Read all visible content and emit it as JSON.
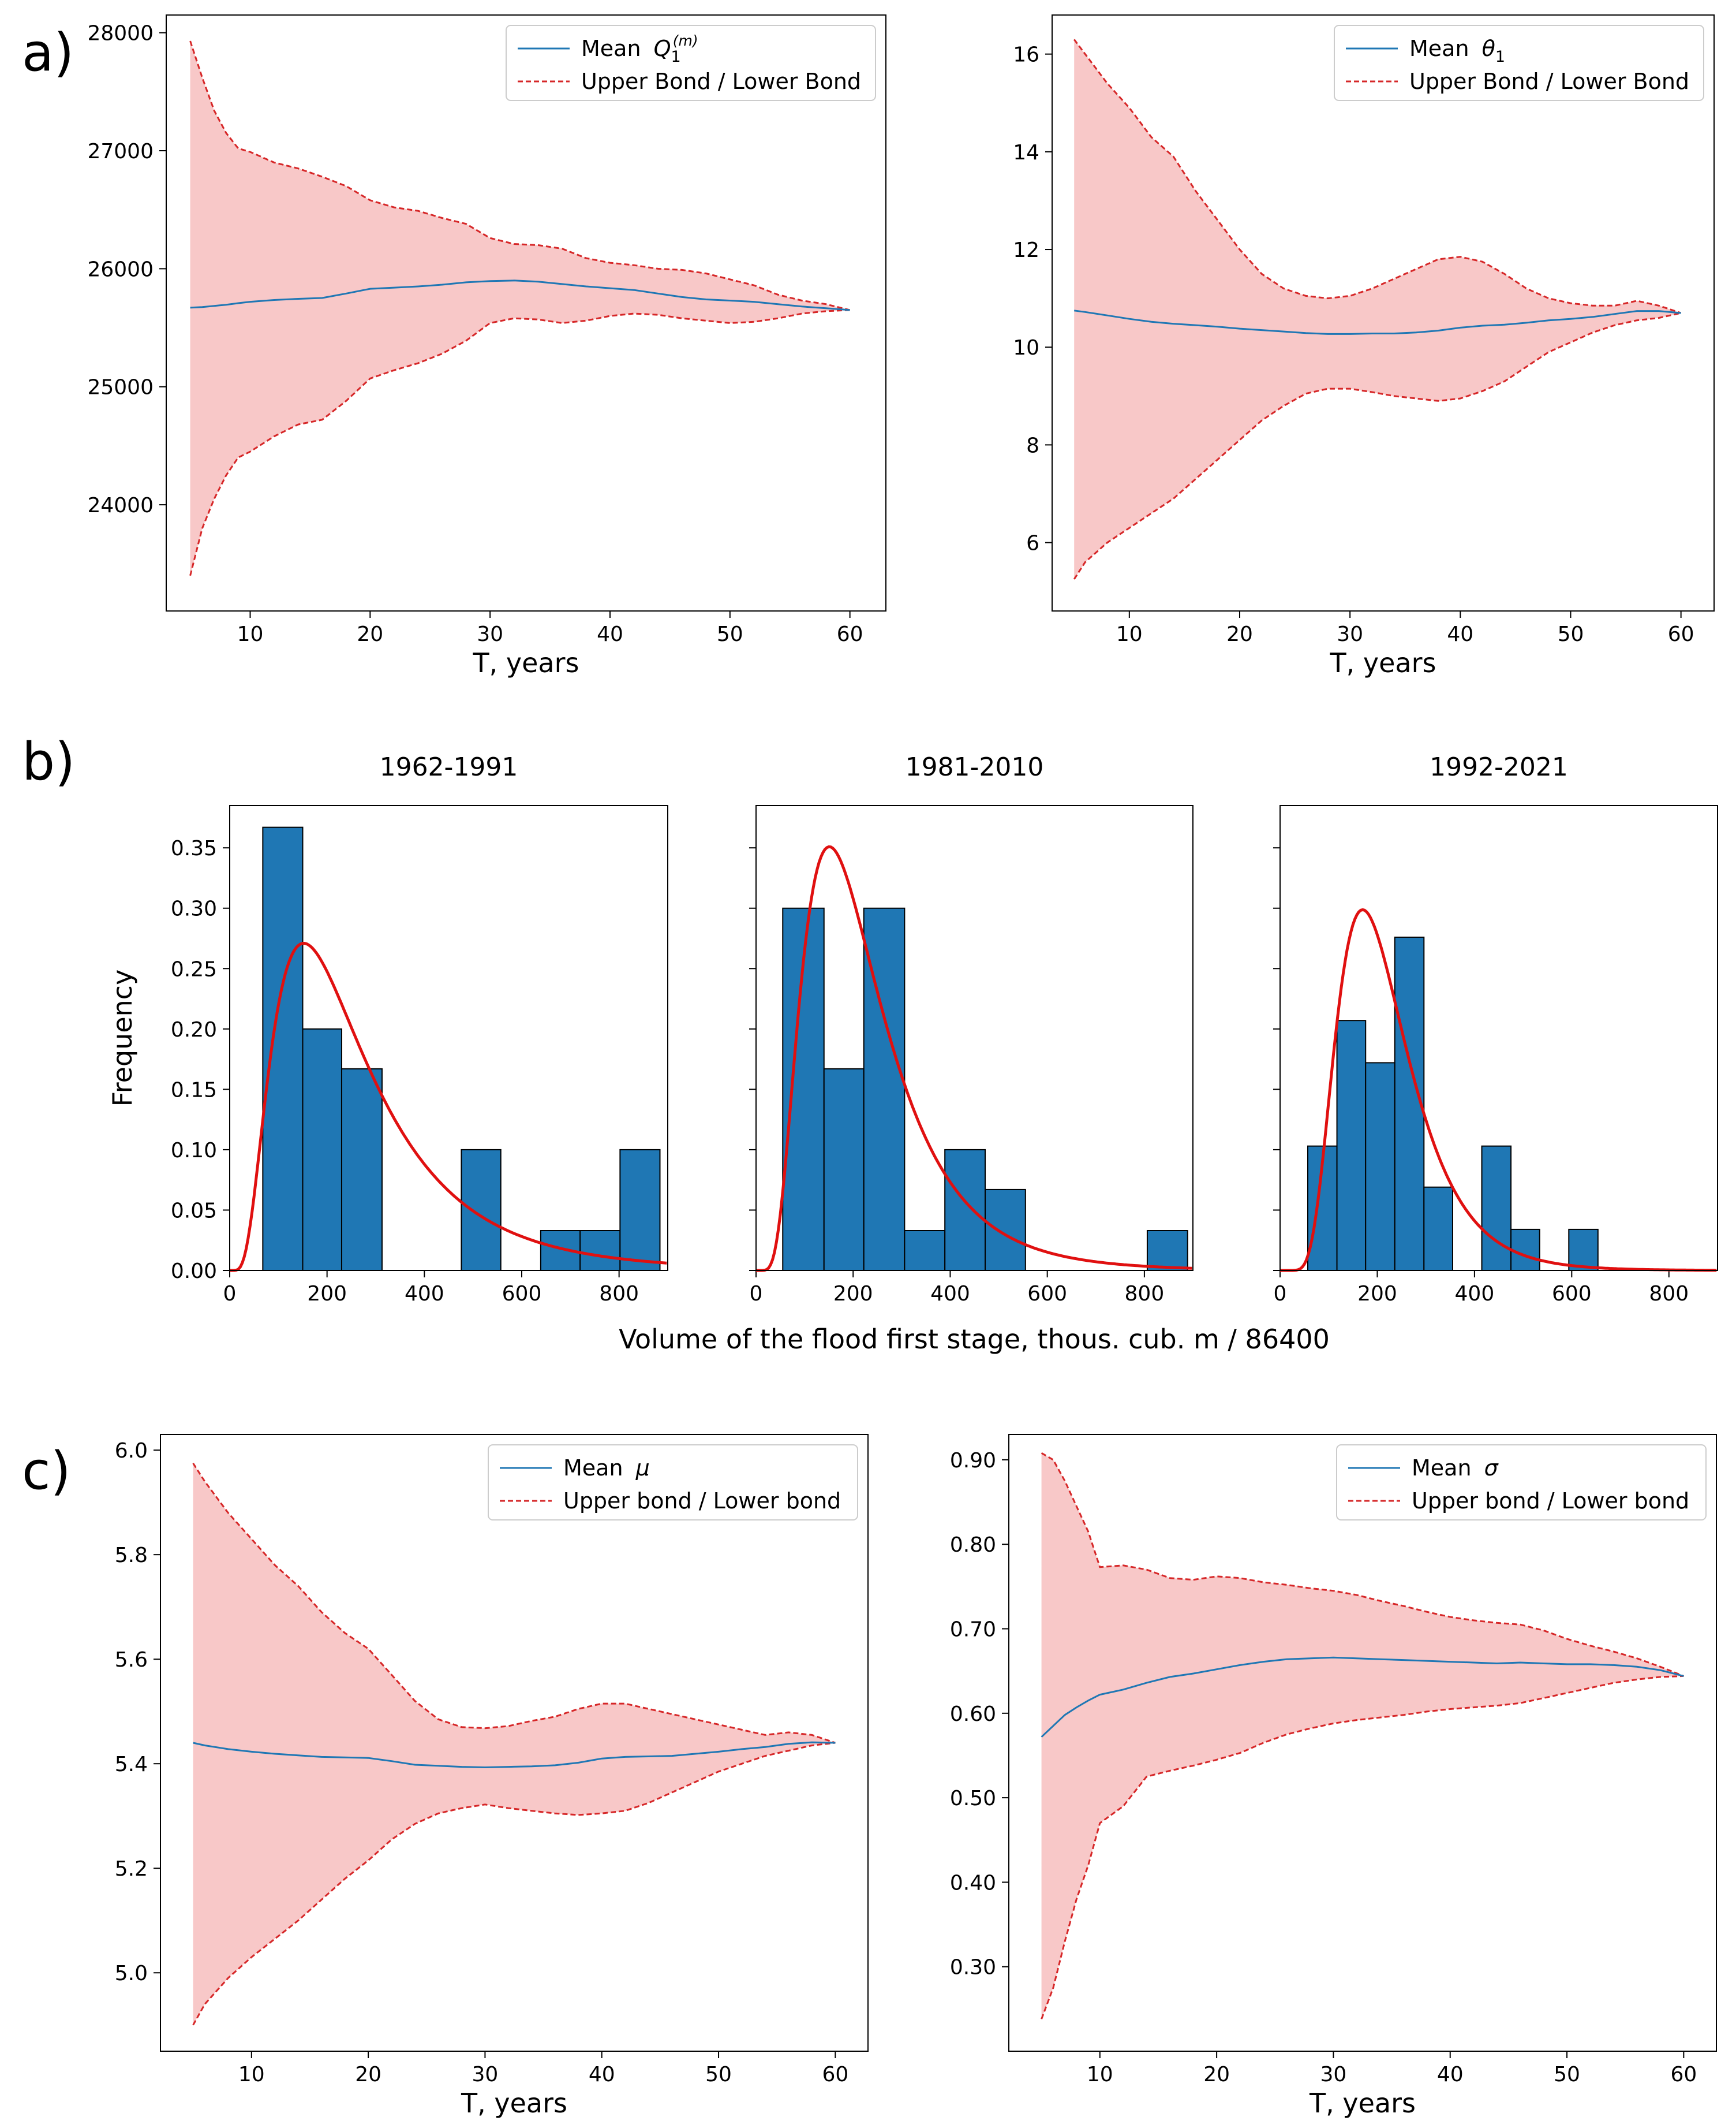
{
  "figure": {
    "panel_labels": [
      "a)",
      "b)",
      "c)"
    ]
  },
  "chart_data": [
    {
      "id": "a1",
      "type": "line",
      "panel": "a)",
      "xlabel": "T, years",
      "ylabel": "",
      "xlim": [
        3,
        63
      ],
      "ylim": [
        23100,
        28150
      ],
      "xticks": [
        10,
        20,
        30,
        40,
        50,
        60
      ],
      "yticks": [
        24000,
        25000,
        26000,
        27000,
        28000
      ],
      "legend": {
        "position": "top-right",
        "mean_label_prefix": "Mean ",
        "mean_label_math": "Q",
        "mean_label_sub": "1",
        "mean_label_sup": "(m)",
        "band_label": "Upper Bond / Lower Bond"
      },
      "colors": {
        "mean": "#1f77b4",
        "bound": "#d62728",
        "fill": "#f8c8c8"
      },
      "x": [
        5,
        6,
        7,
        8,
        9,
        10,
        12,
        14,
        16,
        18,
        20,
        22,
        24,
        26,
        28,
        30,
        32,
        34,
        36,
        38,
        40,
        42,
        44,
        46,
        48,
        50,
        52,
        54,
        56,
        58,
        60
      ],
      "mean": [
        25670,
        25675,
        25685,
        25695,
        25708,
        25720,
        25735,
        25745,
        25752,
        25790,
        25830,
        25840,
        25850,
        25865,
        25885,
        25895,
        25900,
        25890,
        25870,
        25850,
        25835,
        25820,
        25790,
        25760,
        25740,
        25730,
        25720,
        25700,
        25680,
        25665,
        25650
      ],
      "upper": [
        27930,
        27620,
        27340,
        27150,
        27020,
        26990,
        26900,
        26850,
        26780,
        26700,
        26580,
        26520,
        26490,
        26430,
        26380,
        26260,
        26210,
        26200,
        26170,
        26090,
        26050,
        26030,
        26000,
        25990,
        25960,
        25910,
        25860,
        25780,
        25730,
        25700,
        25650
      ],
      "lower": [
        23400,
        23800,
        24050,
        24250,
        24400,
        24450,
        24580,
        24680,
        24720,
        24880,
        25070,
        25140,
        25200,
        25280,
        25390,
        25540,
        25580,
        25570,
        25540,
        25560,
        25600,
        25620,
        25610,
        25580,
        25560,
        25540,
        25550,
        25580,
        25620,
        25640,
        25650
      ]
    },
    {
      "id": "a2",
      "type": "line",
      "panel": "a)",
      "xlabel": "T, years",
      "ylabel": "",
      "xlim": [
        3,
        63
      ],
      "ylim": [
        4.6,
        16.8
      ],
      "xticks": [
        10,
        20,
        30,
        40,
        50,
        60
      ],
      "yticks": [
        6,
        8,
        10,
        12,
        14,
        16
      ],
      "legend": {
        "position": "top-right",
        "mean_label_prefix": "Mean ",
        "mean_label_math": "θ",
        "mean_label_sub": "1",
        "mean_label_sup": "",
        "band_label": "Upper Bond / Lower Bond"
      },
      "colors": {
        "mean": "#1f77b4",
        "bound": "#d62728",
        "fill": "#f8c8c8"
      },
      "x": [
        5,
        6,
        8,
        10,
        12,
        14,
        16,
        18,
        20,
        22,
        24,
        26,
        28,
        30,
        32,
        34,
        36,
        38,
        40,
        42,
        44,
        46,
        48,
        50,
        52,
        54,
        56,
        58,
        60
      ],
      "mean": [
        10.75,
        10.72,
        10.65,
        10.58,
        10.52,
        10.48,
        10.45,
        10.42,
        10.38,
        10.35,
        10.32,
        10.29,
        10.27,
        10.27,
        10.28,
        10.28,
        10.3,
        10.34,
        10.4,
        10.44,
        10.46,
        10.5,
        10.55,
        10.58,
        10.62,
        10.68,
        10.74,
        10.74,
        10.7
      ],
      "upper": [
        16.3,
        16.0,
        15.4,
        14.9,
        14.3,
        13.9,
        13.2,
        12.6,
        12.0,
        11.5,
        11.2,
        11.05,
        11.0,
        11.05,
        11.2,
        11.4,
        11.6,
        11.8,
        11.85,
        11.75,
        11.5,
        11.2,
        11.0,
        10.9,
        10.85,
        10.85,
        10.95,
        10.85,
        10.7
      ],
      "lower": [
        5.25,
        5.6,
        6.0,
        6.3,
        6.6,
        6.9,
        7.3,
        7.7,
        8.1,
        8.5,
        8.8,
        9.05,
        9.15,
        9.15,
        9.08,
        9.0,
        8.95,
        8.9,
        8.95,
        9.1,
        9.3,
        9.6,
        9.9,
        10.1,
        10.3,
        10.45,
        10.55,
        10.6,
        10.7
      ]
    },
    {
      "id": "b1",
      "type": "bar",
      "panel": "b)",
      "title": "1962-1991",
      "xlabel": "",
      "ylabel": "Frequency",
      "xlim": [
        0,
        900
      ],
      "ylim": [
        0,
        0.385
      ],
      "xticks": [
        0,
        200,
        400,
        600,
        800
      ],
      "yticks": [
        0.0,
        0.05,
        0.1,
        0.15,
        0.2,
        0.25,
        0.3,
        0.35
      ],
      "colors": {
        "bar": "#1f77b4",
        "edge": "#000000",
        "curve": "#e01010"
      },
      "bins": [
        [
          68,
          150,
          0.367
        ],
        [
          150,
          230,
          0.2
        ],
        [
          230,
          313,
          0.167
        ],
        [
          313,
          476,
          0.0
        ],
        [
          476,
          557,
          0.1
        ],
        [
          557,
          639,
          0.0
        ],
        [
          639,
          720,
          0.033
        ],
        [
          720,
          802,
          0.033
        ],
        [
          802,
          884,
          0.1
        ]
      ],
      "curve_lognormal": {
        "mu": 5.44,
        "sigma": 0.645
      }
    },
    {
      "id": "b2",
      "type": "bar",
      "panel": "b)",
      "title": "1981-2010",
      "xlabel": "",
      "ylabel": "",
      "xlim": [
        0,
        900
      ],
      "ylim": [
        0,
        0.385
      ],
      "xticks": [
        0,
        200,
        400,
        600,
        800
      ],
      "yticks": [
        0.0,
        0.05,
        0.1,
        0.15,
        0.2,
        0.25,
        0.3,
        0.35
      ],
      "colors": {
        "bar": "#1f77b4",
        "edge": "#000000",
        "curve": "#e01010"
      },
      "bins": [
        [
          55,
          140,
          0.3
        ],
        [
          140,
          222,
          0.167
        ],
        [
          222,
          306,
          0.3
        ],
        [
          306,
          389,
          0.033
        ],
        [
          389,
          472,
          0.1
        ],
        [
          472,
          555,
          0.067
        ],
        [
          555,
          806,
          0.0
        ],
        [
          806,
          889,
          0.033
        ]
      ],
      "curve_lognormal": {
        "mu": 5.32,
        "sigma": 0.55
      }
    },
    {
      "id": "b3",
      "type": "bar",
      "panel": "b)",
      "title": "1992-2021",
      "xlabel": "",
      "ylabel": "",
      "xlim": [
        0,
        900
      ],
      "ylim": [
        0,
        0.385
      ],
      "xticks": [
        0,
        200,
        400,
        600,
        800
      ],
      "yticks": [
        0.0,
        0.05,
        0.1,
        0.15,
        0.2,
        0.25,
        0.3,
        0.35
      ],
      "colors": {
        "bar": "#1f77b4",
        "edge": "#000000",
        "curve": "#e01010"
      },
      "bins": [
        [
          57,
          117,
          0.103
        ],
        [
          117,
          176,
          0.207
        ],
        [
          176,
          236,
          0.172
        ],
        [
          236,
          296,
          0.276
        ],
        [
          296,
          355,
          0.069
        ],
        [
          355,
          415,
          0.0
        ],
        [
          415,
          475,
          0.103
        ],
        [
          475,
          534,
          0.034
        ],
        [
          534,
          594,
          0.0
        ],
        [
          594,
          654,
          0.034
        ]
      ],
      "curve_lognormal": {
        "mu": 5.32,
        "sigma": 0.43
      }
    },
    {
      "id": "c1",
      "type": "line",
      "panel": "c)",
      "xlabel": "T, years",
      "ylabel": "",
      "xlim": [
        2.2,
        62.8
      ],
      "ylim": [
        4.85,
        6.03
      ],
      "xticks": [
        10,
        20,
        30,
        40,
        50,
        60
      ],
      "yticks": [
        5.0,
        5.2,
        5.4,
        5.6,
        5.8,
        6.0
      ],
      "legend": {
        "position": "top-right",
        "mean_label_prefix": "Mean ",
        "mean_label_math": "μ",
        "mean_label_sub": "",
        "mean_label_sup": "",
        "band_label": "Upper bond / Lower bond"
      },
      "colors": {
        "mean": "#1f77b4",
        "bound": "#d62728",
        "fill": "#f8c8c8"
      },
      "x": [
        5,
        6,
        8,
        10,
        12,
        14,
        16,
        18,
        20,
        22,
        24,
        26,
        28,
        30,
        32,
        34,
        36,
        38,
        40,
        42,
        44,
        46,
        48,
        50,
        52,
        54,
        56,
        58,
        60
      ],
      "mean": [
        5.44,
        5.435,
        5.428,
        5.423,
        5.419,
        5.416,
        5.413,
        5.412,
        5.411,
        5.405,
        5.398,
        5.396,
        5.394,
        5.393,
        5.394,
        5.395,
        5.397,
        5.402,
        5.41,
        5.413,
        5.414,
        5.415,
        5.419,
        5.423,
        5.428,
        5.432,
        5.438,
        5.441,
        5.44
      ],
      "upper": [
        5.975,
        5.94,
        5.88,
        5.83,
        5.78,
        5.74,
        5.69,
        5.65,
        5.62,
        5.57,
        5.52,
        5.485,
        5.47,
        5.468,
        5.472,
        5.482,
        5.49,
        5.505,
        5.515,
        5.515,
        5.505,
        5.495,
        5.485,
        5.475,
        5.465,
        5.455,
        5.46,
        5.455,
        5.44
      ],
      "lower": [
        4.9,
        4.94,
        4.99,
        5.03,
        5.065,
        5.1,
        5.14,
        5.18,
        5.215,
        5.255,
        5.285,
        5.305,
        5.315,
        5.322,
        5.315,
        5.31,
        5.305,
        5.302,
        5.305,
        5.31,
        5.325,
        5.345,
        5.365,
        5.385,
        5.4,
        5.415,
        5.425,
        5.435,
        5.44
      ]
    },
    {
      "id": "c2",
      "type": "line",
      "panel": "c)",
      "xlabel": "T, years",
      "ylabel": "",
      "xlim": [
        2.2,
        62.8
      ],
      "ylim": [
        0.2,
        0.93
      ],
      "xticks": [
        10,
        20,
        30,
        40,
        50,
        60
      ],
      "yticks": [
        0.3,
        0.4,
        0.5,
        0.6,
        0.7,
        0.8,
        0.9
      ],
      "legend": {
        "position": "top-right",
        "mean_label_prefix": "Mean ",
        "mean_label_math": "σ",
        "mean_label_sub": "",
        "mean_label_sup": "",
        "band_label": "Upper bond / Lower bond"
      },
      "colors": {
        "mean": "#1f77b4",
        "bound": "#d62728",
        "fill": "#f8c8c8"
      },
      "x": [
        5,
        6,
        7,
        8,
        9,
        10,
        12,
        14,
        16,
        18,
        20,
        22,
        24,
        26,
        28,
        30,
        32,
        34,
        36,
        38,
        40,
        42,
        44,
        46,
        48,
        50,
        52,
        54,
        56,
        58,
        60
      ],
      "mean": [
        0.572,
        0.585,
        0.598,
        0.607,
        0.615,
        0.622,
        0.628,
        0.636,
        0.643,
        0.647,
        0.652,
        0.657,
        0.661,
        0.664,
        0.665,
        0.666,
        0.665,
        0.664,
        0.663,
        0.662,
        0.661,
        0.66,
        0.659,
        0.66,
        0.659,
        0.658,
        0.658,
        0.657,
        0.655,
        0.651,
        0.644
      ],
      "upper": [
        0.908,
        0.9,
        0.875,
        0.845,
        0.815,
        0.773,
        0.775,
        0.77,
        0.76,
        0.758,
        0.762,
        0.76,
        0.755,
        0.752,
        0.748,
        0.745,
        0.74,
        0.733,
        0.727,
        0.72,
        0.714,
        0.71,
        0.707,
        0.705,
        0.698,
        0.688,
        0.68,
        0.673,
        0.665,
        0.655,
        0.644
      ],
      "lower": [
        0.238,
        0.275,
        0.33,
        0.38,
        0.42,
        0.47,
        0.49,
        0.525,
        0.532,
        0.538,
        0.545,
        0.553,
        0.565,
        0.575,
        0.582,
        0.588,
        0.592,
        0.595,
        0.598,
        0.602,
        0.605,
        0.607,
        0.609,
        0.612,
        0.618,
        0.624,
        0.63,
        0.636,
        0.64,
        0.643,
        0.644
      ]
    }
  ],
  "shared": {
    "b_xlabel": "Volume of the flood first stage, thous. cub. m / 86400"
  }
}
